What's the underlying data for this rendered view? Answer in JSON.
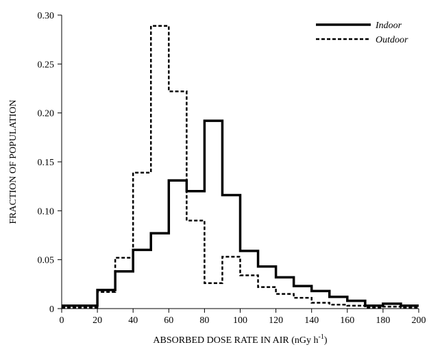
{
  "chart_data": {
    "type": "line",
    "subtype": "step-histogram",
    "title": "",
    "xlabel": "ABSORBED DOSE RATE IN AIR (nGy h",
    "xlabel_superscript": "-1",
    "xlabel_suffix": ")",
    "ylabel": "FRACTION OF POPULATION",
    "xlim": [
      0,
      200
    ],
    "ylim": [
      0,
      0.3
    ],
    "x_ticks": [
      "0",
      "20",
      "40",
      "60",
      "80",
      "100",
      "120",
      "140",
      "160",
      "180",
      "200"
    ],
    "y_ticks": [
      "0",
      "0.05",
      "0.10",
      "0.15",
      "0.20",
      "0.25",
      "0.30"
    ],
    "grid": false,
    "legend_position": "top-right",
    "series": [
      {
        "name": "Indoor",
        "style": "solid",
        "bin_edges": [
          0,
          20,
          30,
          40,
          50,
          60,
          70,
          80,
          90,
          100,
          110,
          120,
          130,
          140,
          150,
          160,
          170,
          180,
          190,
          200
        ],
        "values": [
          0.003,
          0.019,
          0.038,
          0.06,
          0.077,
          0.131,
          0.12,
          0.192,
          0.116,
          0.059,
          0.043,
          0.032,
          0.023,
          0.018,
          0.012,
          0.008,
          0.003,
          0.005,
          0.003
        ]
      },
      {
        "name": "Outdoor",
        "style": "dashed",
        "bin_edges": [
          0,
          20,
          30,
          40,
          50,
          60,
          70,
          80,
          90,
          100,
          110,
          120,
          130,
          140,
          150,
          160,
          170,
          180,
          190,
          200
        ],
        "values": [
          0.001,
          0.017,
          0.052,
          0.139,
          0.289,
          0.222,
          0.09,
          0.026,
          0.053,
          0.034,
          0.022,
          0.015,
          0.011,
          0.006,
          0.004,
          0.003,
          0.001,
          0.002,
          0.001
        ]
      }
    ]
  }
}
